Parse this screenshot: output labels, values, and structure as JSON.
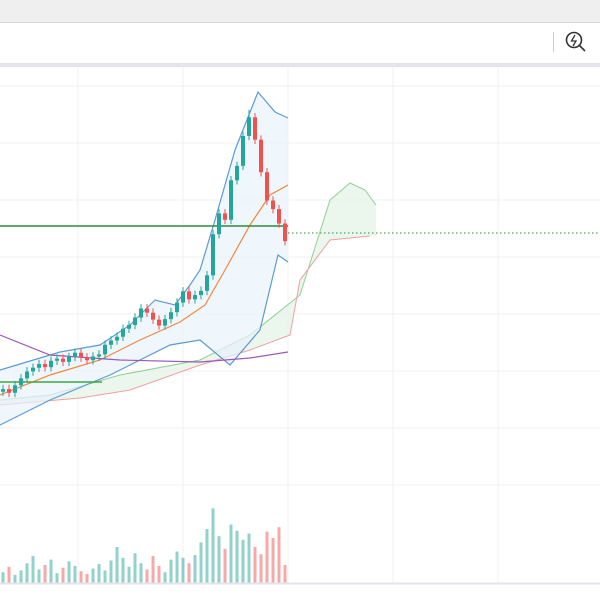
{
  "chart_data": {
    "type": "candlestick",
    "open": [
      39.0,
      39.5,
      38.8,
      40.2,
      41.5,
      42.8,
      43.5,
      44.2,
      43.6,
      44.8,
      45.2,
      44.6,
      45.5,
      46.3,
      45.4,
      44.9,
      45.6,
      46.0,
      47.8,
      48.6,
      49.3,
      50.8,
      51.5,
      52.9,
      54.6,
      53.8,
      52.5,
      51.4,
      52.6,
      53.9,
      55.7,
      57.8,
      56.3,
      57.1,
      57.9,
      60.8,
      68.5,
      72.4,
      71.2,
      78.6,
      81.3,
      86.9,
      90.4,
      86.2,
      80.1,
      74.8,
      73.2,
      70.5
    ],
    "high": [
      40.3,
      40.3,
      41.0,
      42.3,
      43.6,
      44.3,
      45.0,
      45.0,
      45.6,
      46.0,
      46.0,
      46.3,
      47.1,
      47.1,
      46.2,
      46.4,
      46.8,
      48.6,
      49.4,
      50.1,
      51.6,
      52.3,
      53.7,
      55.4,
      55.4,
      54.6,
      53.3,
      53.4,
      54.7,
      56.5,
      58.6,
      58.6,
      57.9,
      58.7,
      61.6,
      69.3,
      73.2,
      73.2,
      79.4,
      82.1,
      87.7,
      91.8,
      91.2,
      87.0,
      80.9,
      75.6,
      74.0,
      71.3
    ],
    "low": [
      38.2,
      38.0,
      38.0,
      39.4,
      40.7,
      42.0,
      42.7,
      42.8,
      42.8,
      44.0,
      43.8,
      43.8,
      44.7,
      44.6,
      44.1,
      44.1,
      44.8,
      45.2,
      47.0,
      47.8,
      48.5,
      50.0,
      50.7,
      52.1,
      53.0,
      51.7,
      50.6,
      50.6,
      51.8,
      53.1,
      54.9,
      55.5,
      55.5,
      56.3,
      57.1,
      60.0,
      67.7,
      70.4,
      70.4,
      77.8,
      80.5,
      86.1,
      85.4,
      79.3,
      74.0,
      72.4,
      69.7,
      66.4
    ],
    "close": [
      39.5,
      38.8,
      40.2,
      41.5,
      42.8,
      43.5,
      44.2,
      43.6,
      44.8,
      45.2,
      44.6,
      45.5,
      46.3,
      45.4,
      44.9,
      45.6,
      46.0,
      47.8,
      48.6,
      49.3,
      50.8,
      51.5,
      52.9,
      54.6,
      53.8,
      52.5,
      51.4,
      52.6,
      53.9,
      55.7,
      57.8,
      56.3,
      57.1,
      57.9,
      60.8,
      68.5,
      72.4,
      71.2,
      78.6,
      81.3,
      86.9,
      90.4,
      86.2,
      80.1,
      74.8,
      73.2,
      70.5,
      67.2
    ],
    "volume": [
      12,
      18,
      9,
      14,
      22,
      30,
      15,
      20,
      26,
      11,
      17,
      24,
      19,
      13,
      10,
      16,
      21,
      14,
      25,
      40,
      28,
      18,
      33,
      22,
      15,
      30,
      19,
      12,
      26,
      35,
      28,
      22,
      31,
      45,
      60,
      83,
      52,
      38,
      65,
      58,
      48,
      55,
      40,
      32,
      57,
      50,
      62,
      20
    ],
    "ylim": [
      0,
      100
    ],
    "y2lim": [
      0,
      100
    ],
    "up_color": "#26a69a",
    "down_color": "#ef5350"
  }
}
